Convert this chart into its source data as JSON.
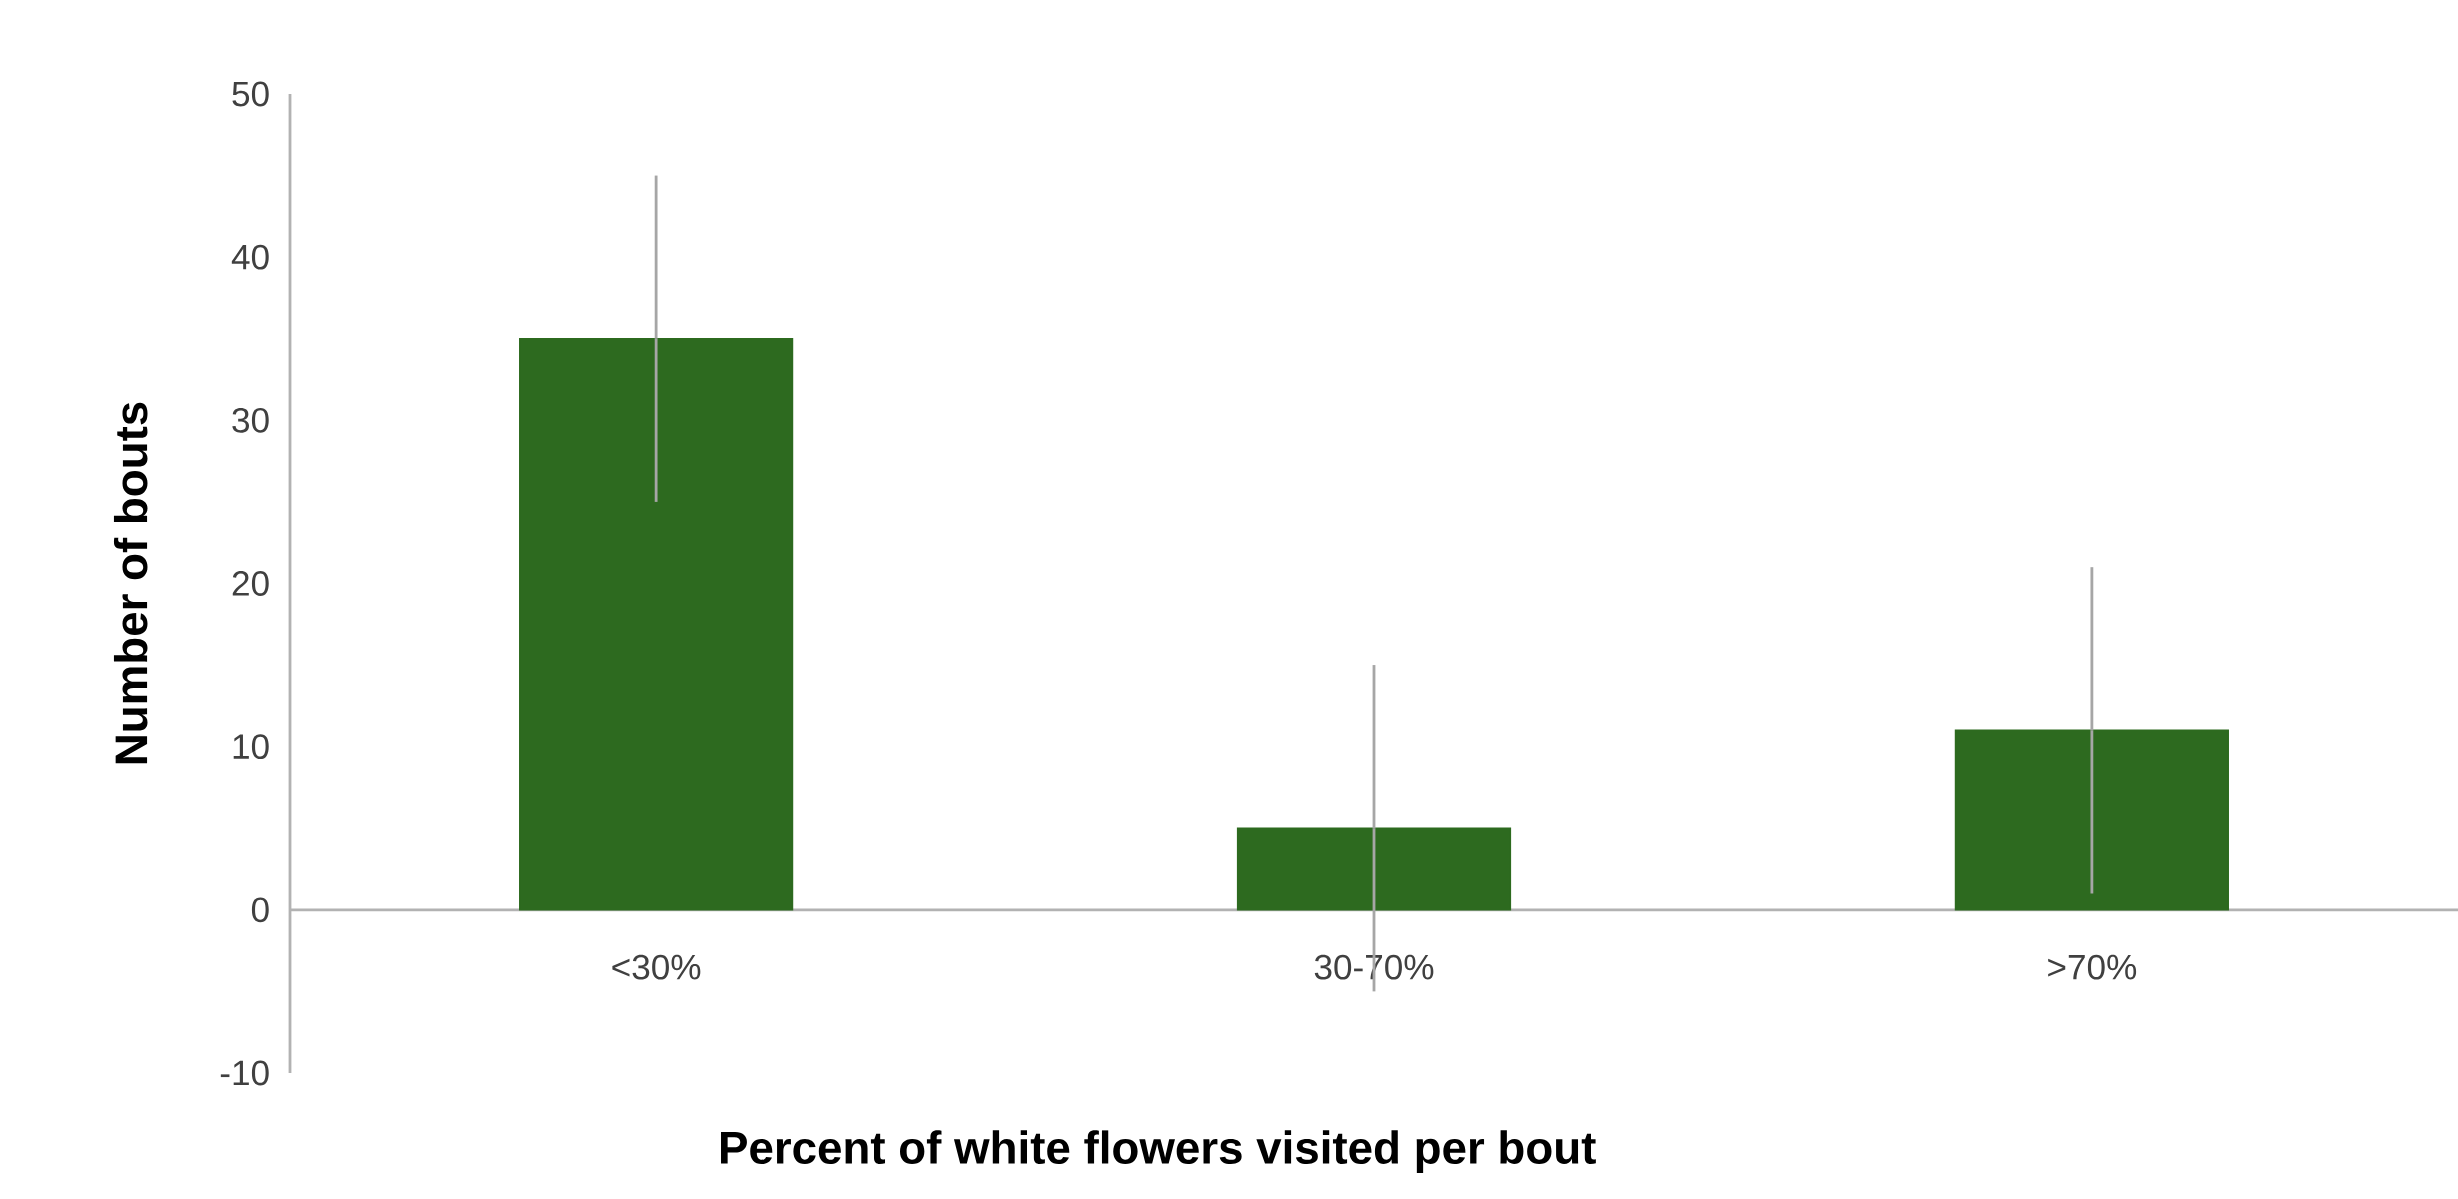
{
  "chart_data": {
    "type": "bar",
    "xlabel": "Percent of white flowers visited per bout",
    "ylabel": "Number of bouts",
    "categories": [
      "<30%",
      "30-70%",
      ">70%"
    ],
    "values": [
      35,
      5,
      11
    ],
    "errors": [
      10,
      10,
      10
    ],
    "color": "#2d6a1f",
    "ylim": [
      -10,
      50
    ],
    "yticks": [
      -10,
      0,
      10,
      20,
      30,
      40,
      50
    ],
    "grid": false
  }
}
